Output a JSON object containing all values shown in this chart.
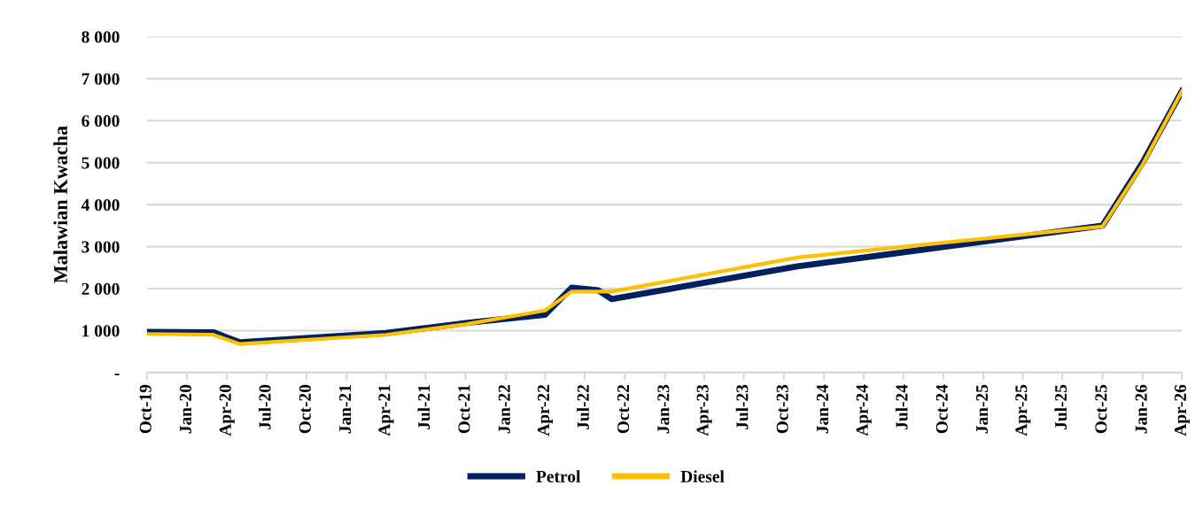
{
  "chart_data": {
    "type": "line",
    "ylabel": "Malawian Kwacha",
    "series": [
      {
        "name": "Petrol",
        "color": "#002060",
        "x": [
          "2019-10",
          "2020-03",
          "2020-05",
          "2021-04",
          "2021-10",
          "2022-04",
          "2022-06",
          "2022-08",
          "2022-09",
          "2023-11",
          "2025-10",
          "2026-01",
          "2026-04"
        ],
        "values": [
          970,
          960,
          720,
          940,
          1180,
          1380,
          2020,
          1960,
          1750,
          2530,
          3500,
          5000,
          6700
        ]
      },
      {
        "name": "Diesel",
        "color": "#ffc000",
        "x": [
          "2019-10",
          "2020-03",
          "2020-05",
          "2021-04",
          "2021-10",
          "2022-04",
          "2022-06",
          "2022-09",
          "2023-11",
          "2025-10",
          "2026-01",
          "2026-04"
        ],
        "values": [
          920,
          900,
          680,
          900,
          1150,
          1480,
          1930,
          1930,
          2740,
          3480,
          4950,
          6700
        ]
      }
    ],
    "xlim": [
      "2019-10",
      "2026-04"
    ],
    "xticks": [
      {
        "value": "2019-10",
        "label": "Oct-19"
      },
      {
        "value": "2020-01",
        "label": "Jan-20"
      },
      {
        "value": "2020-04",
        "label": "Apr-20"
      },
      {
        "value": "2020-07",
        "label": "Jul-20"
      },
      {
        "value": "2020-10",
        "label": "Oct-20"
      },
      {
        "value": "2021-01",
        "label": "Jan-21"
      },
      {
        "value": "2021-04",
        "label": "Apr-21"
      },
      {
        "value": "2021-07",
        "label": "Jul-21"
      },
      {
        "value": "2021-10",
        "label": "Oct-21"
      },
      {
        "value": "2022-01",
        "label": "Jan-22"
      },
      {
        "value": "2022-04",
        "label": "Apr-22"
      },
      {
        "value": "2022-07",
        "label": "Jul-22"
      },
      {
        "value": "2022-10",
        "label": "Oct-22"
      },
      {
        "value": "2023-01",
        "label": "Jan-23"
      },
      {
        "value": "2023-04",
        "label": "Apr-23"
      },
      {
        "value": "2023-07",
        "label": "Jul-23"
      },
      {
        "value": "2023-10",
        "label": "Oct-23"
      },
      {
        "value": "2024-01",
        "label": "Jan-24"
      },
      {
        "value": "2024-04",
        "label": "Apr-24"
      },
      {
        "value": "2024-07",
        "label": "Jul-24"
      },
      {
        "value": "2024-10",
        "label": "Oct-24"
      },
      {
        "value": "2025-01",
        "label": "Jan-25"
      },
      {
        "value": "2025-04",
        "label": "Apr-25"
      },
      {
        "value": "2025-07",
        "label": "Jul-25"
      },
      {
        "value": "2025-10",
        "label": "Oct-25"
      },
      {
        "value": "2026-01",
        "label": "Jan-26"
      },
      {
        "value": "2026-04",
        "label": "Apr-26"
      }
    ],
    "ylim": [
      0,
      8000
    ],
    "yticks": [
      {
        "value": 0,
        "label": "-"
      },
      {
        "value": 1000,
        "label": "1 000"
      },
      {
        "value": 2000,
        "label": "2 000"
      },
      {
        "value": 3000,
        "label": "3 000"
      },
      {
        "value": 4000,
        "label": "4 000"
      },
      {
        "value": 5000,
        "label": "5 000"
      },
      {
        "value": 6000,
        "label": "6 000"
      },
      {
        "value": 7000,
        "label": "7 000"
      },
      {
        "value": 8000,
        "label": "8 000"
      }
    ],
    "grid": "y",
    "legend": "bottom",
    "marker": "none",
    "line_style": "solid"
  }
}
